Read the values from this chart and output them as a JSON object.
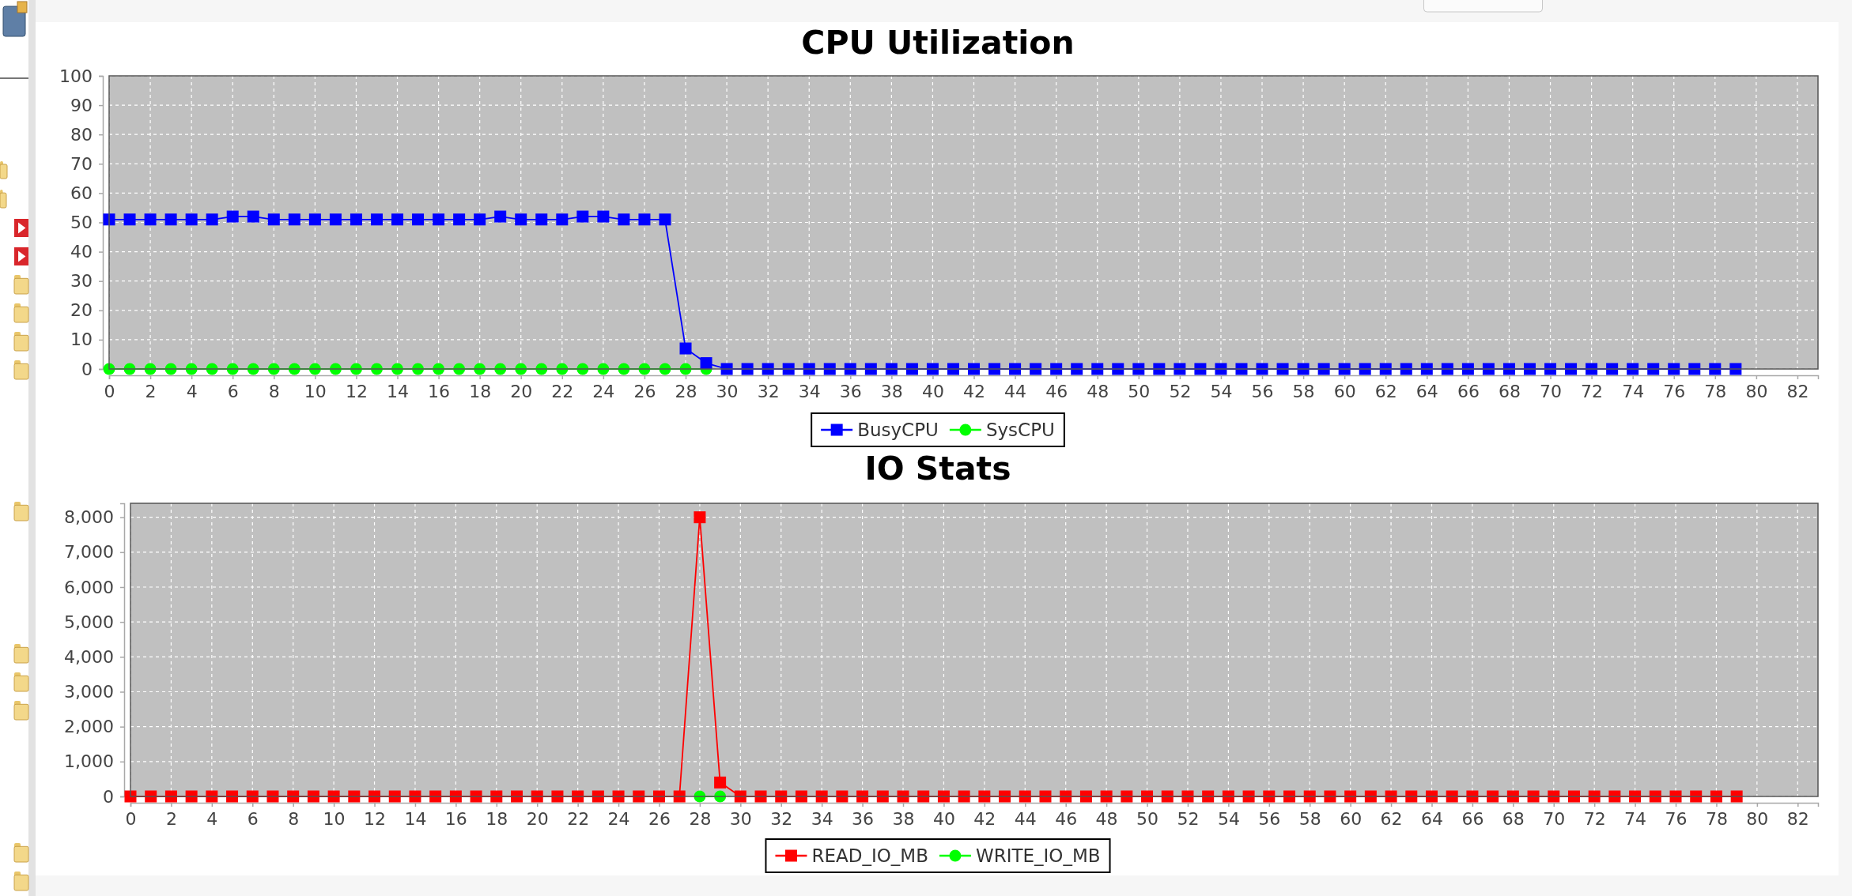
{
  "chart_data": [
    {
      "type": "line",
      "title": "CPU Utilization",
      "x": [
        0,
        1,
        2,
        3,
        4,
        5,
        6,
        7,
        8,
        9,
        10,
        11,
        12,
        13,
        14,
        15,
        16,
        17,
        18,
        19,
        20,
        21,
        22,
        23,
        24,
        25,
        26,
        27,
        28,
        29,
        30,
        31,
        32,
        33,
        34,
        35,
        36,
        37,
        38,
        39,
        40,
        41,
        42,
        43,
        44,
        45,
        46,
        47,
        48,
        49,
        50,
        51,
        52,
        53,
        54,
        55,
        56,
        57,
        58,
        59,
        60,
        61,
        62,
        63,
        64,
        65,
        66,
        67,
        68,
        69,
        70,
        71,
        72,
        73,
        74,
        75,
        76,
        77,
        78,
        79
      ],
      "series": [
        {
          "name": "BusyCPU",
          "color": "#0000ff",
          "marker": "square",
          "values": [
            51,
            51,
            51,
            51,
            51,
            51,
            52,
            52,
            51,
            51,
            51,
            51,
            51,
            51,
            51,
            51,
            51,
            51,
            51,
            52,
            51,
            51,
            51,
            52,
            52,
            51,
            51,
            51,
            7,
            2,
            0,
            0,
            0,
            0,
            0,
            0,
            0,
            0,
            0,
            0,
            0,
            0,
            0,
            0,
            0,
            0,
            0,
            0,
            0,
            0,
            0,
            0,
            0,
            0,
            0,
            0,
            0,
            0,
            0,
            0,
            0,
            0,
            0,
            0,
            0,
            0,
            0,
            0,
            0,
            0,
            0,
            0,
            0,
            0,
            0,
            0,
            0,
            0,
            0,
            0
          ]
        },
        {
          "name": "SysCPU",
          "color": "#00ff00",
          "marker": "circle",
          "values": [
            0,
            0,
            0,
            0,
            0,
            0,
            0,
            0,
            0,
            0,
            0,
            0,
            0,
            0,
            0,
            0,
            0,
            0,
            0,
            0,
            0,
            0,
            0,
            0,
            0,
            0,
            0,
            0,
            0,
            0,
            null,
            null,
            null,
            null,
            null,
            null,
            null,
            null,
            null,
            null,
            null,
            null,
            null,
            null,
            null,
            null,
            null,
            null,
            null,
            null,
            null,
            null,
            null,
            null,
            null,
            null,
            null,
            null,
            null,
            null,
            null,
            null,
            null,
            null,
            null,
            null,
            null,
            null,
            null,
            null,
            null,
            null,
            null,
            null,
            null,
            null,
            null,
            null,
            null,
            null
          ]
        }
      ],
      "xlim": [
        0,
        83
      ],
      "xticks": [
        0,
        2,
        4,
        6,
        8,
        10,
        12,
        14,
        16,
        18,
        20,
        22,
        24,
        26,
        28,
        30,
        32,
        34,
        36,
        38,
        40,
        42,
        44,
        46,
        48,
        50,
        52,
        54,
        56,
        58,
        60,
        62,
        64,
        66,
        68,
        70,
        72,
        74,
        76,
        78,
        80,
        82
      ],
      "ylim": [
        0,
        100
      ],
      "yticks": [
        0,
        10,
        20,
        30,
        40,
        50,
        60,
        70,
        80,
        90,
        100
      ],
      "grid": true,
      "legend": "bottom",
      "line_style": "solid"
    },
    {
      "type": "line",
      "title": "IO Stats",
      "x": [
        0,
        1,
        2,
        3,
        4,
        5,
        6,
        7,
        8,
        9,
        10,
        11,
        12,
        13,
        14,
        15,
        16,
        17,
        18,
        19,
        20,
        21,
        22,
        23,
        24,
        25,
        26,
        27,
        28,
        29,
        30,
        31,
        32,
        33,
        34,
        35,
        36,
        37,
        38,
        39,
        40,
        41,
        42,
        43,
        44,
        45,
        46,
        47,
        48,
        49,
        50,
        51,
        52,
        53,
        54,
        55,
        56,
        57,
        58,
        59,
        60,
        61,
        62,
        63,
        64,
        65,
        66,
        67,
        68,
        69,
        70,
        71,
        72,
        73,
        74,
        75,
        76,
        77,
        78,
        79
      ],
      "series": [
        {
          "name": "READ_IO_MB",
          "color": "#ff0000",
          "marker": "square",
          "values": [
            0,
            0,
            0,
            0,
            0,
            0,
            0,
            0,
            0,
            0,
            0,
            0,
            0,
            0,
            0,
            0,
            0,
            0,
            0,
            0,
            0,
            0,
            0,
            0,
            0,
            0,
            0,
            0,
            8000,
            400,
            0,
            0,
            0,
            0,
            0,
            0,
            0,
            0,
            0,
            0,
            0,
            0,
            0,
            0,
            0,
            0,
            0,
            0,
            0,
            0,
            0,
            0,
            0,
            0,
            0,
            0,
            0,
            0,
            0,
            0,
            0,
            0,
            0,
            0,
            0,
            0,
            0,
            0,
            0,
            0,
            0,
            0,
            0,
            0,
            0,
            0,
            0,
            0,
            0,
            0
          ]
        },
        {
          "name": "WRITE_IO_MB",
          "color": "#00ff00",
          "marker": "circle",
          "values": [
            null,
            null,
            null,
            null,
            null,
            null,
            null,
            null,
            null,
            null,
            null,
            null,
            null,
            null,
            null,
            null,
            null,
            null,
            null,
            null,
            null,
            null,
            null,
            null,
            null,
            null,
            null,
            null,
            0,
            0,
            null,
            null,
            null,
            null,
            null,
            null,
            null,
            null,
            null,
            null,
            null,
            null,
            null,
            null,
            null,
            null,
            null,
            null,
            null,
            null,
            null,
            null,
            null,
            null,
            null,
            null,
            null,
            null,
            null,
            null,
            null,
            null,
            null,
            null,
            null,
            null,
            null,
            null,
            null,
            null,
            null,
            null,
            null,
            null,
            null,
            null,
            null,
            null,
            null,
            null
          ]
        }
      ],
      "xlim": [
        0,
        83
      ],
      "xticks": [
        0,
        2,
        4,
        6,
        8,
        10,
        12,
        14,
        16,
        18,
        20,
        22,
        24,
        26,
        28,
        30,
        32,
        34,
        36,
        38,
        40,
        42,
        44,
        46,
        48,
        50,
        52,
        54,
        56,
        58,
        60,
        62,
        64,
        66,
        68,
        70,
        72,
        74,
        76,
        78,
        80,
        82
      ],
      "ylim": [
        0,
        8400
      ],
      "yticks": [
        0,
        {
          "value": 1000,
          "label": "1,000"
        },
        {
          "value": 2000,
          "label": "2,000"
        },
        {
          "value": 3000,
          "label": "3,000"
        },
        {
          "value": 4000,
          "label": "4,000"
        },
        {
          "value": 5000,
          "label": "5,000"
        },
        {
          "value": 6000,
          "label": "6,000"
        },
        {
          "value": 7000,
          "label": "7,000"
        },
        {
          "value": 8000,
          "label": "8,000"
        }
      ],
      "grid": true,
      "legend": "bottom",
      "line_style": "solid"
    }
  ]
}
